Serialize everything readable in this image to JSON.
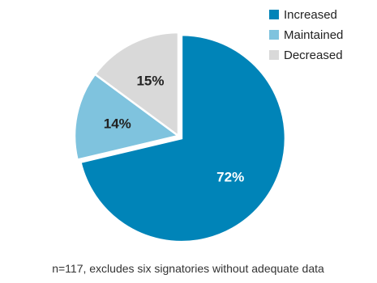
{
  "chart_data": {
    "type": "pie",
    "title": "",
    "categories": [
      "Increased",
      "Maintained",
      "Decreased"
    ],
    "values": [
      72,
      14,
      15
    ],
    "labels": [
      "72%",
      "14%",
      "15%"
    ],
    "colors": [
      "#0084b8",
      "#7fc3de",
      "#d9d9d9"
    ],
    "label_colors": [
      "#ffffff",
      "#222222",
      "#222222"
    ],
    "legend_position": "top-right",
    "start_angle_deg": 0,
    "direction": "clockwise",
    "exploded_slice": "Increased",
    "note": "n=117, excludes six signatories without adequate data"
  }
}
